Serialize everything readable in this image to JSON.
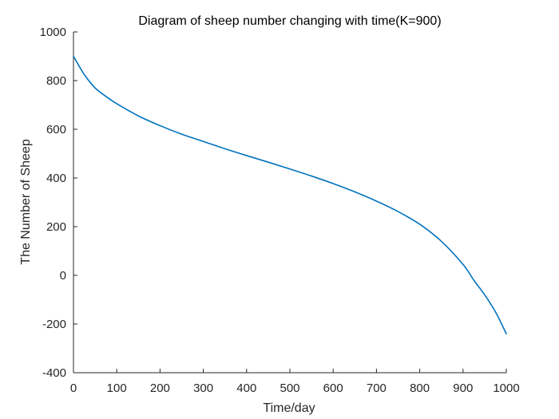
{
  "chart_data": {
    "type": "line",
    "title": "Diagram of sheep number changing with time(K=900)",
    "xlabel": "Time/day",
    "ylabel": "The Number of Sheep",
    "xlim": [
      0,
      1000
    ],
    "ylim": [
      -400,
      1000
    ],
    "xticks": [
      0,
      100,
      200,
      300,
      400,
      500,
      600,
      700,
      800,
      900,
      1000
    ],
    "yticks": [
      -400,
      -200,
      0,
      200,
      400,
      600,
      800,
      1000
    ],
    "xtick_labels": [
      "0",
      "100",
      "200",
      "300",
      "400",
      "500",
      "600",
      "700",
      "800",
      "900",
      "1000"
    ],
    "ytick_labels": [
      "-400",
      "-200",
      "0",
      "200",
      "400",
      "600",
      "800",
      "1000"
    ],
    "grid": false,
    "series": [
      {
        "color": "#0072BD",
        "x": [
          0,
          25,
          50,
          75,
          100,
          150,
          200,
          250,
          300,
          350,
          400,
          450,
          500,
          550,
          600,
          650,
          700,
          750,
          800,
          850,
          900,
          925,
          950,
          975,
          1000
        ],
        "y": [
          900,
          825,
          770,
          735,
          705,
          655,
          615,
          580,
          550,
          520,
          492,
          465,
          437,
          408,
          377,
          343,
          305,
          262,
          210,
          140,
          45,
          -20,
          -80,
          -150,
          -240
        ]
      }
    ]
  }
}
